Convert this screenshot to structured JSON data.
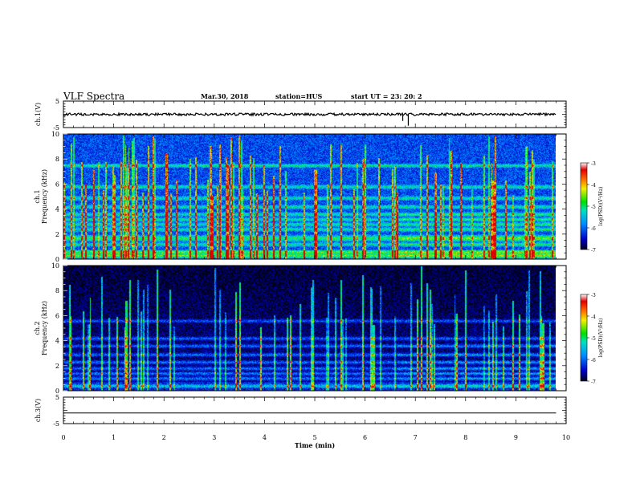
{
  "header": {
    "title": "VLF Spectra",
    "date": "Mar.30, 2018",
    "station": "station=HUS",
    "start": "start  UT =   23: 20: 2"
  },
  "chart_data": [
    {
      "type": "line",
      "ylabel": "ch.1(V)",
      "ylim": [
        -5,
        5
      ],
      "yticks": [
        "5",
        "-5"
      ],
      "series": [
        {
          "description_level": 0,
          "x": [
            0,
            9.8
          ]
        }
      ],
      "spikes": [
        {
          "x": 6.75,
          "y": -2.5
        },
        {
          "x": 6.86,
          "y": -4.3
        }
      ]
    },
    {
      "type": "heatmap",
      "ylabel_line1": "ch.1",
      "ylabel_line2": "Frequency (kHz)",
      "ylim": [
        0,
        10
      ],
      "xlim": [
        0,
        10
      ],
      "data_end_min": 9.8,
      "yticks": [
        "0",
        "2",
        "4",
        "6",
        "8",
        "10"
      ],
      "colorbar": {
        "label": "log(PSD)(V²/Hz)",
        "range": [
          -7,
          -3
        ],
        "ticks": [
          "-3",
          "-4",
          "-5",
          "-6",
          "-7"
        ]
      },
      "bands_khz": [
        0.3,
        0.6,
        1.2,
        1.6,
        1.8,
        2.4,
        2.8,
        3.2,
        3.6,
        4.2,
        4.9,
        5.8,
        7.5
      ],
      "first_marked_x_min": 0.75
    },
    {
      "type": "heatmap",
      "ylabel_line1": "ch.2",
      "ylabel_line2": "Frequency (kHz)",
      "ylim": [
        0,
        10
      ],
      "xlim": [
        0,
        10
      ],
      "data_end_min": 9.8,
      "yticks": [
        "0",
        "2",
        "4",
        "6",
        "8",
        "10"
      ],
      "colorbar": {
        "label": "log(PSD)(V²/Hz)",
        "range": [
          -7,
          -3
        ],
        "ticks": [
          "-3",
          "-4",
          "-5",
          "-6",
          "-7"
        ]
      },
      "bands_khz": [
        0.4,
        1.0,
        1.4,
        1.8,
        2.3,
        2.9,
        3.6,
        4.2,
        5.6
      ]
    },
    {
      "type": "line",
      "ylabel": "ch.3(V)",
      "ylim": [
        -5,
        5
      ],
      "yticks": [
        "5",
        "-5"
      ],
      "series": [
        {
          "x": [
            0,
            9.8
          ],
          "y": [
            -1,
            -1
          ]
        }
      ],
      "xlabel": "Time  (min)",
      "xlim": [
        0,
        10
      ],
      "xticks": [
        "0",
        "1",
        "2",
        "3",
        "4",
        "5",
        "6",
        "7",
        "8",
        "9",
        "10"
      ]
    }
  ]
}
